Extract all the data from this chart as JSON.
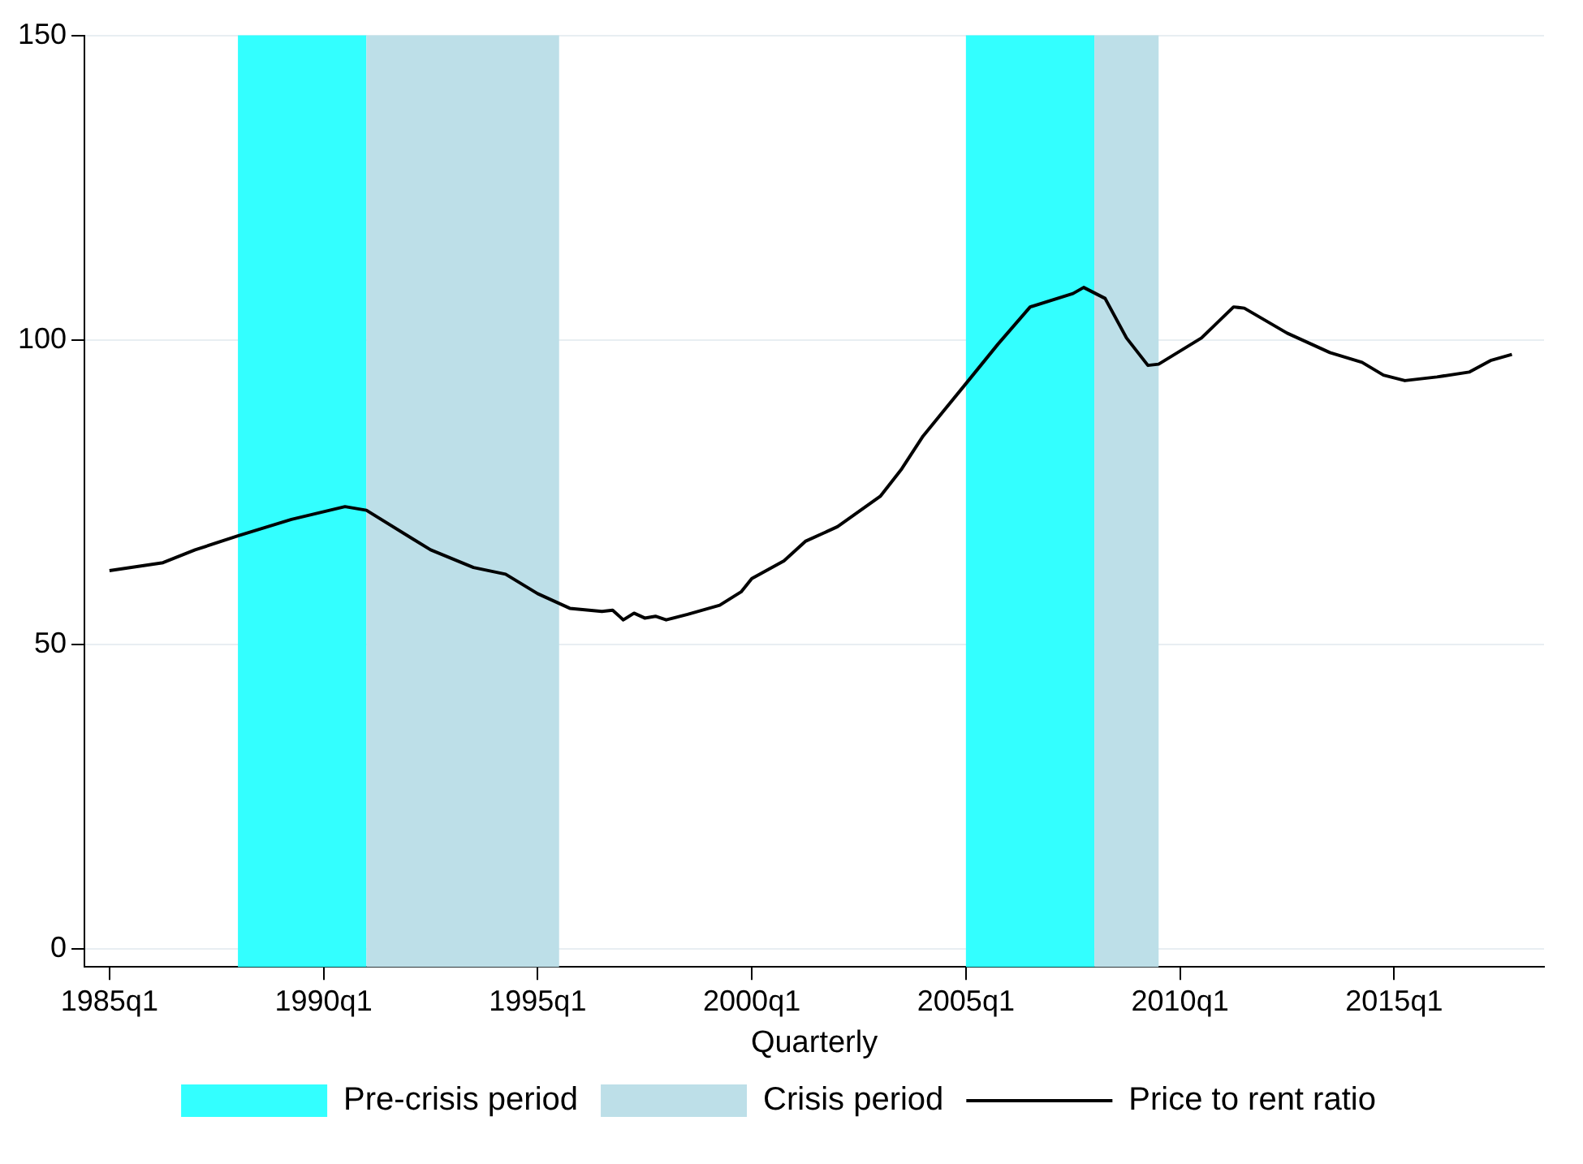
{
  "chart_data": {
    "type": "line",
    "xlabel": "Quarterly",
    "x": [
      "1985-01",
      "1986-04",
      "1987-01",
      "1988-01",
      "1989-04",
      "1990-07",
      "1991-01",
      "1992-07",
      "1993-07",
      "1994-04",
      "1995-01",
      "1995-10",
      "1996-07",
      "1996-10",
      "1997-01",
      "1997-04",
      "1997-07",
      "1997-10",
      "1998-01",
      "1998-07",
      "1999-04",
      "1999-10",
      "2000-01",
      "2000-10",
      "2001-04",
      "2002-01",
      "2003-01",
      "2003-07",
      "2004-01",
      "2005-01",
      "2005-10",
      "2006-07",
      "2007-07",
      "2007-10",
      "2008-04",
      "2008-10",
      "2009-04",
      "2009-07",
      "2010-07",
      "2011-04",
      "2011-07",
      "2012-07",
      "2013-07",
      "2014-04",
      "2014-10",
      "2015-04",
      "2016-01",
      "2016-10",
      "2017-04",
      "2017-10"
    ],
    "series": [
      {
        "name": "Price to rent ratio",
        "color": "#000000",
        "values": [
          62.1,
          63.4,
          65.5,
          67.8,
          70.5,
          72.6,
          72.0,
          65.5,
          62.6,
          61.5,
          58.3,
          55.9,
          55.4,
          55.6,
          54.0,
          55.1,
          54.3,
          54.6,
          54.0,
          54.9,
          56.4,
          58.6,
          60.8,
          63.7,
          66.9,
          69.3,
          74.3,
          78.8,
          84.2,
          92.8,
          99.3,
          105.4,
          107.6,
          108.6,
          106.8,
          100.3,
          95.8,
          96.0,
          100.3,
          105.4,
          105.2,
          101.1,
          97.9,
          96.3,
          94.2,
          93.3,
          93.9,
          94.7,
          96.6,
          97.6
        ]
      }
    ],
    "bands": [
      {
        "axis": "x",
        "from": "1988-01",
        "to": "1991-01",
        "label": "Pre-crisis period",
        "color": "#33ffff"
      },
      {
        "axis": "x",
        "from": "1991-01",
        "to": "1995-07",
        "label": "Crisis period",
        "color": "#bddfe8"
      },
      {
        "axis": "x",
        "from": "2005-01",
        "to": "2008-01",
        "color": "#33ffff"
      },
      {
        "axis": "x",
        "from": "2008-01",
        "to": "2009-07",
        "color": "#bddfe8"
      }
    ],
    "xlim": [
      "1984-06",
      "2018-07"
    ],
    "xticks": [
      {
        "value": "1985-01",
        "label": "1985q1"
      },
      {
        "value": "1990-01",
        "label": "1990q1"
      },
      {
        "value": "1995-01",
        "label": "1995q1"
      },
      {
        "value": "2000-01",
        "label": "2000q1"
      },
      {
        "value": "2005-01",
        "label": "2005q1"
      },
      {
        "value": "2010-01",
        "label": "2010q1"
      },
      {
        "value": "2015-01",
        "label": "2015q1"
      }
    ],
    "ylim": [
      -3,
      150
    ],
    "yticks": [
      0,
      50,
      100,
      150
    ],
    "grid": "y",
    "legend": "bottom",
    "marker": "none",
    "line_style": "solid"
  }
}
